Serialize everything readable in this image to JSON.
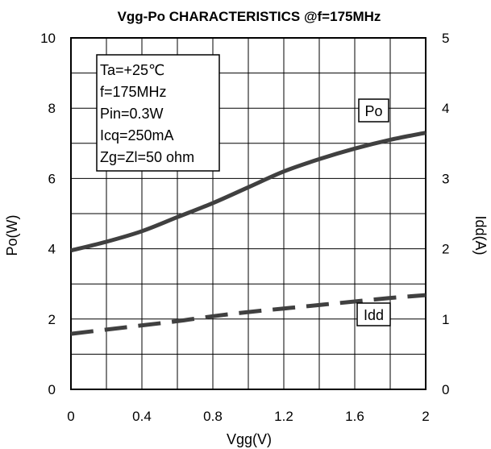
{
  "chart_data": {
    "type": "line",
    "title": "Vgg-Po CHARACTERISTICS @f=175MHz",
    "xlabel": "Vgg(V)",
    "ylabel": "Po(W)",
    "y2label": "Idd(A)",
    "xlim": [
      0,
      2
    ],
    "ylim": [
      0,
      10
    ],
    "y2lim": [
      0,
      5
    ],
    "grid": true,
    "x_ticks": [
      "0",
      "0.4",
      "0.8",
      "1.2",
      "1.6",
      "2"
    ],
    "y_ticks": [
      "0",
      "2",
      "4",
      "6",
      "8",
      "10"
    ],
    "y2_ticks": [
      "0",
      "1",
      "2",
      "3",
      "4",
      "5"
    ],
    "conditions": [
      "Ta=+25℃",
      "f=175MHz",
      "Pin=0.3W",
      "Icq=250mA",
      "Zg=Zl=50 ohm"
    ],
    "series": [
      {
        "name": "Po",
        "axis": "left",
        "style": "solid",
        "x": [
          0,
          0.2,
          0.4,
          0.6,
          0.8,
          1.0,
          1.2,
          1.4,
          1.6,
          1.8,
          2.0
        ],
        "values": [
          3.95,
          4.2,
          4.5,
          4.9,
          5.3,
          5.75,
          6.2,
          6.55,
          6.85,
          7.1,
          7.3
        ]
      },
      {
        "name": "Idd",
        "axis": "right",
        "style": "dashed",
        "x": [
          0,
          0.2,
          0.4,
          0.6,
          0.8,
          1.0,
          1.2,
          1.4,
          1.6,
          1.8,
          2.0
        ],
        "values": [
          0.79,
          0.85,
          0.91,
          0.97,
          1.04,
          1.1,
          1.15,
          1.2,
          1.25,
          1.3,
          1.34
        ]
      }
    ]
  }
}
